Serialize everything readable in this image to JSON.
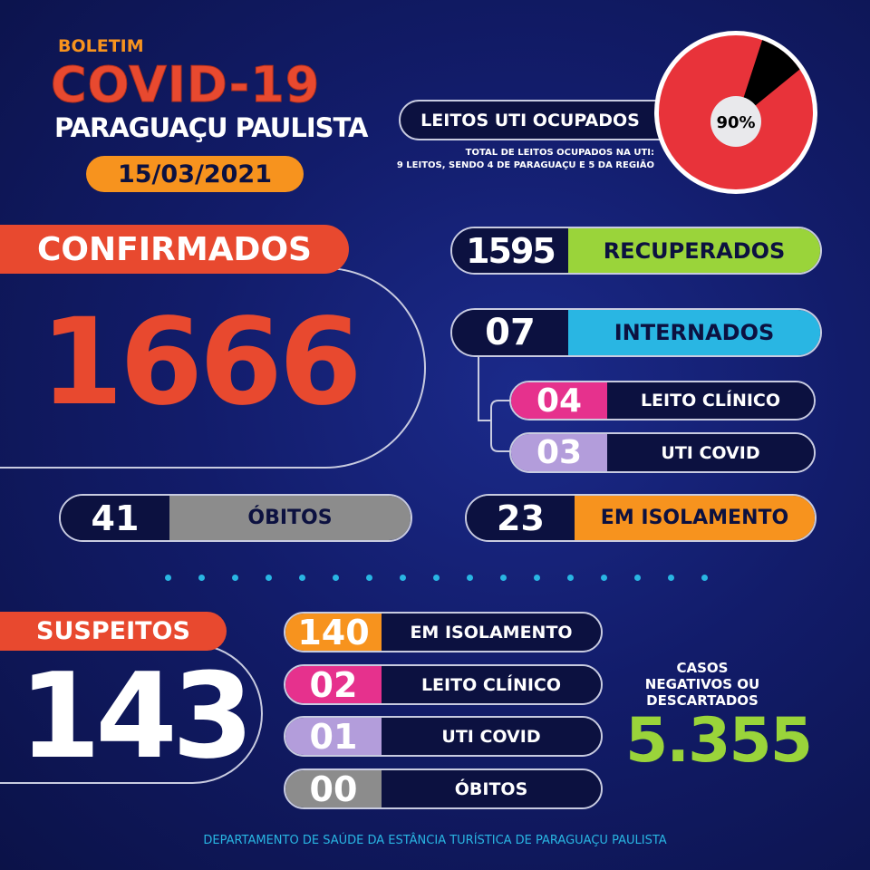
{
  "header": {
    "bulletin": "BOLETIM",
    "title": "COVID-19",
    "city": "PARAGUAÇU PAULISTA",
    "date": "15/03/2021"
  },
  "icu": {
    "label": "LEITOS UTI OCUPADOS",
    "percent_label": "90%",
    "occupied_percent": 90,
    "note_line1": "TOTAL DE LEITOS OCUPADOS NA UTI:",
    "note_line2": "9 LEITOS, SENDO 4 DE PARAGUAÇU E 5 DA REGIÃO",
    "colors": {
      "occupied": "#e8333a",
      "free": "#000000"
    }
  },
  "confirmed": {
    "label": "CONFIRMADOS",
    "value": "1666"
  },
  "deaths": {
    "value": "41",
    "label": "ÓBITOS"
  },
  "recovered": {
    "value": "1595",
    "label": "RECUPERADOS"
  },
  "hospitalized": {
    "value": "07",
    "label": "INTERNADOS",
    "clinical": {
      "value": "04",
      "label": "LEITO CLÍNICO"
    },
    "icu": {
      "value": "03",
      "label": "UTI COVID"
    }
  },
  "isolation": {
    "value": "23",
    "label": "EM ISOLAMENTO"
  },
  "suspects": {
    "label": "SUSPEITOS",
    "value": "143",
    "rows": [
      {
        "value": "140",
        "label": "EM ISOLAMENTO",
        "color": "#f7931e"
      },
      {
        "value": "02",
        "label": "LEITO CLÍNICO",
        "color": "#e6318d"
      },
      {
        "value": "01",
        "label": "UTI COVID",
        "color": "#b39ddb"
      },
      {
        "value": "00",
        "label": "ÓBITOS",
        "color": "#8c8c8c"
      }
    ]
  },
  "negatives": {
    "line1": "CASOS",
    "line2": "NEGATIVOS OU",
    "line3": "DESCARTADOS",
    "value": "5.355"
  },
  "footer": "DEPARTAMENTO DE SAÚDE DA ESTÂNCIA TURÍSTICA DE PARAGUAÇU PAULISTA",
  "colors": {
    "red": "#e8492f",
    "orange": "#f7931e",
    "green": "#9ad43a",
    "cyan": "#29b6e3",
    "pink": "#e6318d",
    "lavender": "#b39ddb",
    "grey": "#8c8c8c"
  }
}
